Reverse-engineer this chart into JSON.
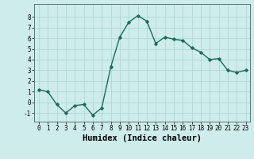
{
  "x": [
    0,
    1,
    2,
    3,
    4,
    5,
    6,
    7,
    8,
    9,
    10,
    11,
    12,
    13,
    14,
    15,
    16,
    17,
    18,
    19,
    20,
    21,
    22,
    23
  ],
  "y": [
    1.2,
    1.0,
    -0.2,
    -1.0,
    -0.3,
    -0.2,
    -1.2,
    -0.5,
    3.3,
    6.1,
    7.5,
    8.1,
    7.6,
    5.5,
    6.1,
    5.9,
    5.8,
    5.1,
    4.7,
    4.0,
    4.1,
    3.0,
    2.8,
    3.0
  ],
  "xlabel": "Humidex (Indice chaleur)",
  "xlim": [
    -0.5,
    23.5
  ],
  "ylim": [
    -1.8,
    9.2
  ],
  "yticks": [
    -1,
    0,
    1,
    2,
    3,
    4,
    5,
    6,
    7,
    8
  ],
  "xticks": [
    0,
    1,
    2,
    3,
    4,
    5,
    6,
    7,
    8,
    9,
    10,
    11,
    12,
    13,
    14,
    15,
    16,
    17,
    18,
    19,
    20,
    21,
    22,
    23
  ],
  "line_color": "#1a6b5a",
  "marker": "D",
  "marker_size": 1.8,
  "line_width": 1.0,
  "bg_color": "#ceecea",
  "grid_color": "#aed8d4",
  "tick_fontsize": 5.5,
  "xlabel_fontsize": 7.5
}
